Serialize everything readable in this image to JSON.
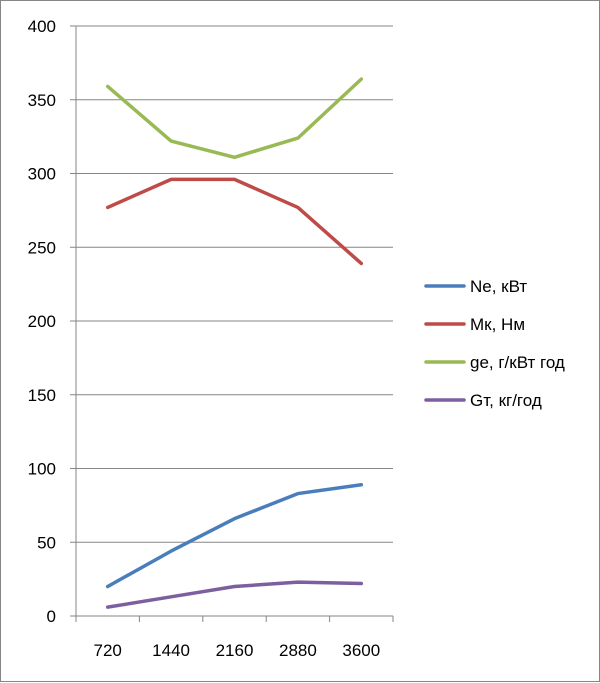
{
  "chart_data": {
    "type": "line",
    "title": "",
    "xlabel": "",
    "ylabel": "",
    "categories": [
      "720",
      "1440",
      "2160",
      "2880",
      "3600"
    ],
    "ylim": [
      0,
      400
    ],
    "y_ticks": [
      "0",
      "50",
      "100",
      "150",
      "200",
      "250",
      "300",
      "350",
      "400"
    ],
    "grid": "horizontal",
    "legend_position": "right",
    "series": [
      {
        "name": "Ne, кВт",
        "color": "#4a7ebb",
        "values": [
          20,
          44,
          66,
          83,
          89
        ]
      },
      {
        "name": "Мк, Нм",
        "color": "#be4b48",
        "values": [
          277,
          296,
          296,
          277,
          239
        ]
      },
      {
        "name": "ge, г/кВт год",
        "color": "#98b954",
        "values": [
          359,
          322,
          311,
          324,
          364
        ]
      },
      {
        "name": "Gт, кг/год",
        "color": "#7d5fa0",
        "values": [
          6,
          13,
          20,
          23,
          22
        ]
      }
    ]
  }
}
